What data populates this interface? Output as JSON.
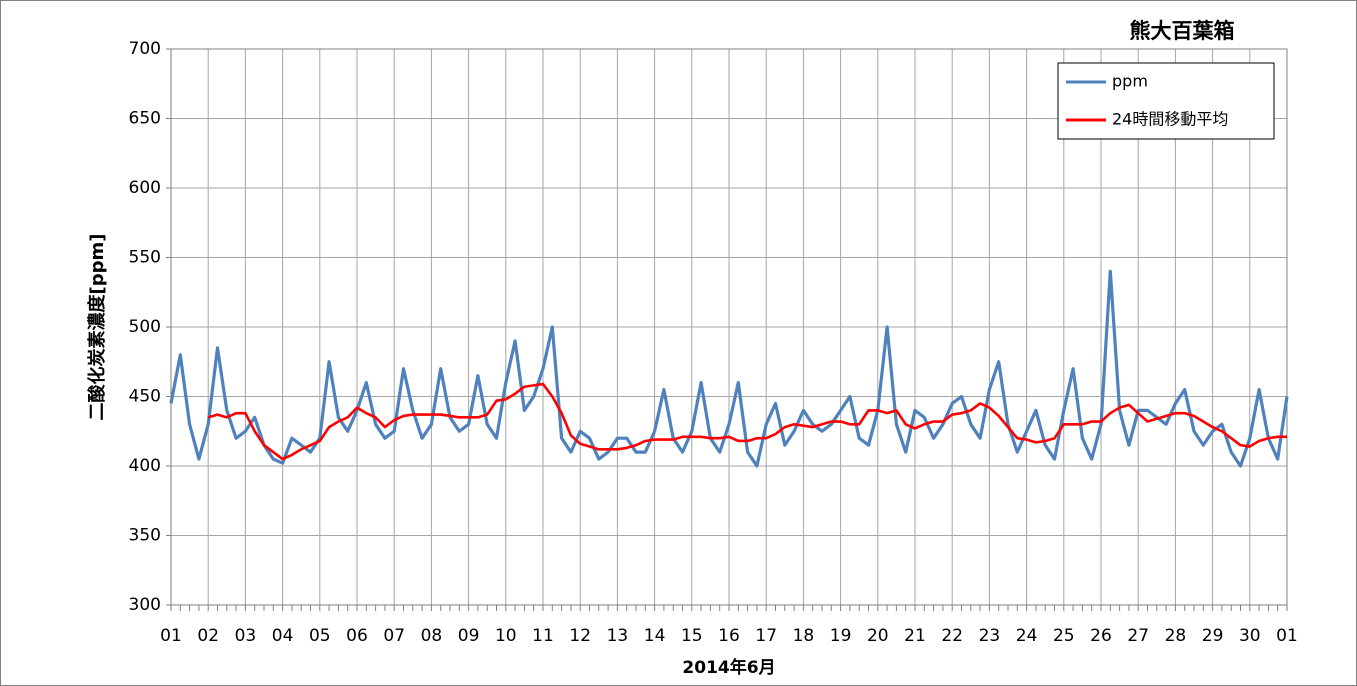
{
  "chart_data": {
    "type": "line",
    "title": "熊大百葉箱",
    "x_label": "2014年6月",
    "y_label": "二酸化炭素濃度[ppm]",
    "ylim": [
      300,
      700
    ],
    "yticks": [
      300,
      350,
      400,
      450,
      500,
      550,
      600,
      650,
      700
    ],
    "xlim": [
      0,
      30
    ],
    "xticks": [
      {
        "value": 0,
        "label": "01"
      },
      {
        "value": 1,
        "label": "02"
      },
      {
        "value": 2,
        "label": "03"
      },
      {
        "value": 3,
        "label": "04"
      },
      {
        "value": 4,
        "label": "05"
      },
      {
        "value": 5,
        "label": "06"
      },
      {
        "value": 6,
        "label": "07"
      },
      {
        "value": 7,
        "label": "08"
      },
      {
        "value": 8,
        "label": "09"
      },
      {
        "value": 9,
        "label": "10"
      },
      {
        "value": 10,
        "label": "11"
      },
      {
        "value": 11,
        "label": "12"
      },
      {
        "value": 12,
        "label": "13"
      },
      {
        "value": 13,
        "label": "14"
      },
      {
        "value": 14,
        "label": "15"
      },
      {
        "value": 15,
        "label": "16"
      },
      {
        "value": 16,
        "label": "17"
      },
      {
        "value": 17,
        "label": "18"
      },
      {
        "value": 18,
        "label": "19"
      },
      {
        "value": 19,
        "label": "20"
      },
      {
        "value": 20,
        "label": "21"
      },
      {
        "value": 21,
        "label": "22"
      },
      {
        "value": 22,
        "label": "23"
      },
      {
        "value": 23,
        "label": "24"
      },
      {
        "value": 24,
        "label": "25"
      },
      {
        "value": 25,
        "label": "26"
      },
      {
        "value": 26,
        "label": "27"
      },
      {
        "value": 27,
        "label": "28"
      },
      {
        "value": 28,
        "label": "29"
      },
      {
        "value": 29,
        "label": "30"
      },
      {
        "value": 30,
        "label": "01"
      }
    ],
    "grid": true,
    "legend": "upper right",
    "x": [
      0,
      0.25,
      0.5,
      0.75,
      1,
      1.25,
      1.5,
      1.75,
      2,
      2.25,
      2.5,
      2.75,
      3,
      3.25,
      3.5,
      3.75,
      4,
      4.25,
      4.5,
      4.75,
      5,
      5.25,
      5.5,
      5.75,
      6,
      6.25,
      6.5,
      6.75,
      7,
      7.25,
      7.5,
      7.75,
      8,
      8.25,
      8.5,
      8.75,
      9,
      9.25,
      9.5,
      9.75,
      10,
      10.25,
      10.5,
      10.75,
      11,
      11.25,
      11.5,
      11.75,
      12,
      12.25,
      12.5,
      12.75,
      13,
      13.25,
      13.5,
      13.75,
      14,
      14.25,
      14.5,
      14.75,
      15,
      15.25,
      15.5,
      15.75,
      16,
      16.25,
      16.5,
      16.75,
      17,
      17.25,
      17.5,
      17.75,
      18,
      18.25,
      18.5,
      18.75,
      19,
      19.25,
      19.5,
      19.75,
      20,
      20.25,
      20.5,
      20.75,
      21,
      21.25,
      21.5,
      21.75,
      22,
      22.25,
      22.5,
      22.75,
      23,
      23.25,
      23.5,
      23.75,
      24,
      24.25,
      24.5,
      24.75,
      25,
      25.25,
      25.5,
      25.75,
      26,
      26.25,
      26.5,
      26.75,
      27,
      27.25,
      27.5,
      27.75,
      28,
      28.25,
      28.5,
      28.75,
      29,
      29.25,
      29.5,
      29.75,
      30
    ],
    "series": [
      {
        "name": "ppm",
        "color": "#4f81bd",
        "values": [
          445,
          480,
          430,
          405,
          430,
          485,
          440,
          420,
          425,
          435,
          415,
          405,
          402,
          420,
          415,
          410,
          420,
          475,
          435,
          425,
          440,
          460,
          430,
          420,
          425,
          470,
          440,
          420,
          430,
          470,
          435,
          425,
          430,
          465,
          430,
          420,
          460,
          490,
          440,
          450,
          470,
          500,
          420,
          410,
          425,
          420,
          405,
          410,
          420,
          420,
          410,
          410,
          425,
          455,
          420,
          410,
          425,
          460,
          420,
          410,
          430,
          460,
          410,
          400,
          430,
          445,
          415,
          425,
          440,
          430,
          425,
          430,
          440,
          450,
          420,
          415,
          440,
          500,
          430,
          410,
          440,
          435,
          420,
          430,
          445,
          450,
          430,
          420,
          455,
          475,
          430,
          410,
          425,
          440,
          415,
          405,
          440,
          470,
          420,
          405,
          430,
          540,
          440,
          415,
          440,
          440,
          435,
          430,
          445,
          455,
          425,
          415,
          425,
          430,
          410,
          400,
          420,
          455,
          420,
          405,
          450
        ]
      },
      {
        "name": "24時間移動平均",
        "color": "#ff0000",
        "values": [
          null,
          null,
          null,
          null,
          435,
          437,
          435,
          438,
          438,
          425,
          415,
          410,
          405,
          408,
          412,
          415,
          418,
          428,
          432,
          435,
          442,
          438,
          435,
          428,
          433,
          436,
          437,
          437,
          437,
          437,
          436,
          435,
          435,
          435,
          437,
          447,
          448,
          452,
          457,
          458,
          459,
          450,
          438,
          422,
          416,
          414,
          412,
          412,
          412,
          413,
          415,
          418,
          419,
          419,
          419,
          421,
          421,
          421,
          420,
          420,
          421,
          418,
          418,
          420,
          420,
          423,
          428,
          430,
          429,
          428,
          430,
          432,
          432,
          430,
          430,
          440,
          440,
          438,
          440,
          430,
          427,
          430,
          432,
          432,
          437,
          438,
          440,
          445,
          442,
          436,
          428,
          420,
          419,
          417,
          418,
          420,
          430,
          430,
          430,
          432,
          432,
          438,
          442,
          444,
          438,
          432,
          434,
          436,
          438,
          438,
          436,
          432,
          428,
          425,
          420,
          415,
          414,
          418,
          420,
          421,
          421
        ]
      }
    ]
  }
}
